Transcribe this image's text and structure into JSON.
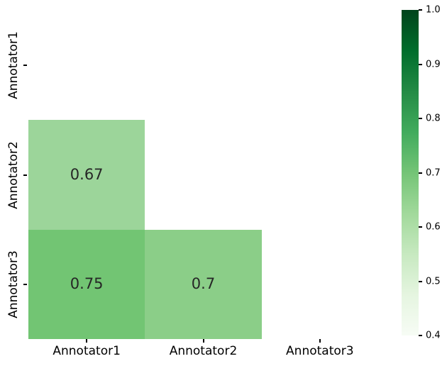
{
  "chart_data": {
    "type": "heatmap",
    "title": "",
    "xlabel": "",
    "ylabel": "",
    "x_categories": [
      "Annotator1",
      "Annotator2",
      "Annotator3"
    ],
    "y_categories": [
      "Annotator1",
      "Annotator2",
      "Annotator3"
    ],
    "cells": [
      {
        "row": 1,
        "col": 0,
        "value": 0.67,
        "label": "0.67",
        "color": "#9cd59a"
      },
      {
        "row": 2,
        "col": 0,
        "value": 0.75,
        "label": "0.75",
        "color": "#72c573"
      },
      {
        "row": 2,
        "col": 1,
        "value": 0.7,
        "label": "0.7",
        "color": "#8bce88"
      }
    ],
    "empty_cell_color": "#ffffff",
    "colormap": "Greens",
    "vmin": 0.4,
    "vmax": 1.0,
    "colorbar": {
      "tick_labels_top_to_bottom": [
        "1.0",
        "0.9",
        "0.8",
        "0.7",
        "0.6",
        "0.5",
        "0.4"
      ],
      "gradient_top_to_bottom": [
        "#00441b",
        "#006d2c",
        "#238b45",
        "#41ab5d",
        "#74c476",
        "#a1d99b",
        "#c7e9c0",
        "#e5f5e0",
        "#f7fcf5"
      ]
    },
    "annotation_color": "#262626",
    "tick_color": "#000000",
    "legend": "none",
    "grid": false
  }
}
